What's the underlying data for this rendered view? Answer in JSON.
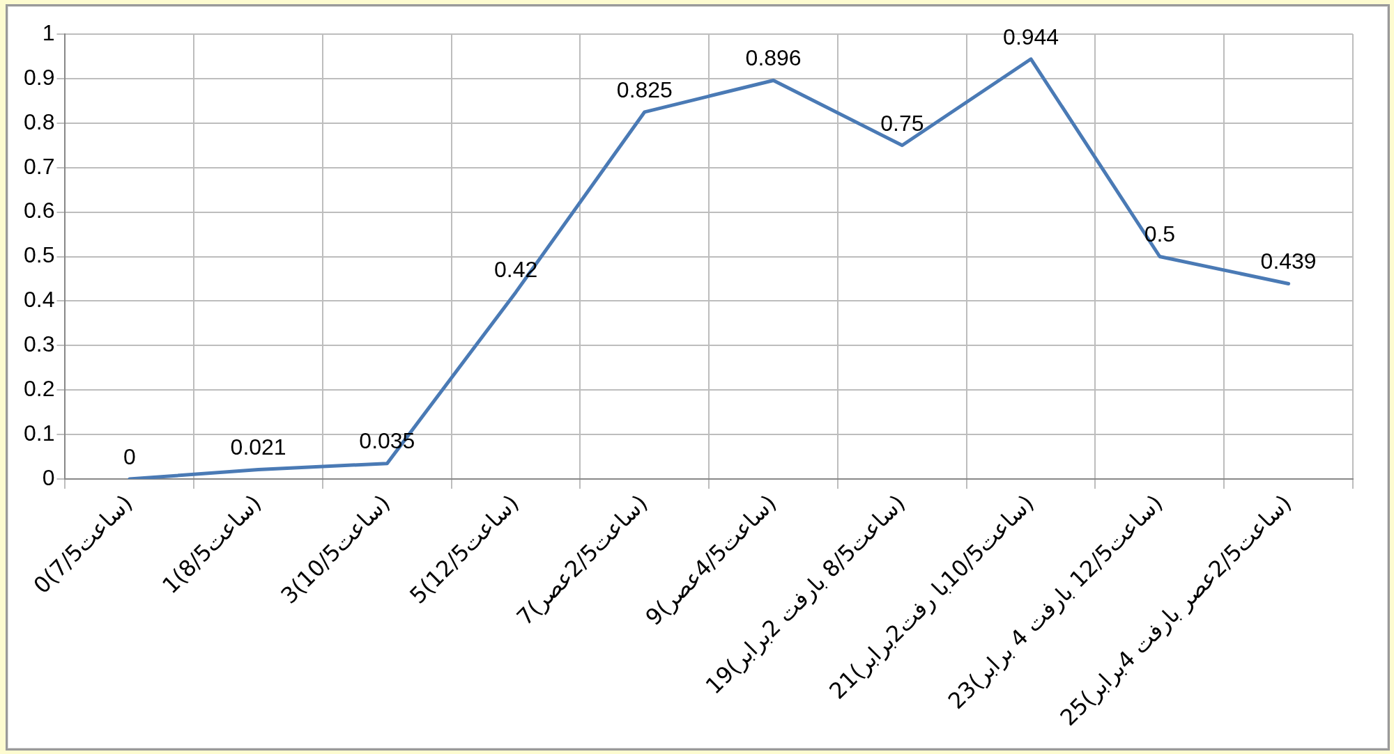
{
  "chart_data": {
    "type": "line",
    "categories": [
      "0(ساعت7/5)",
      "1(ساعت8/5)",
      "3(ساعت10/5)",
      "5(ساعت12/5)",
      "7(ساعت2/5عصر)",
      "9(ساعت4/5عصر)",
      "19(ساعت8/5 بارفت 2برابر)",
      "21(ساعت10/5با رفت2برابر)",
      "23(ساعت12/5 بارفت 4 برابر)",
      "25(ساعت2/5عصر بارفت 4برابر)"
    ],
    "series": [
      {
        "color": "#4a7ab5",
        "values": [
          0,
          0.021,
          0.035,
          0.42,
          0.825,
          0.896,
          0.75,
          0.944,
          0.5,
          0.439
        ]
      }
    ],
    "ylim": [
      0,
      1
    ],
    "yticks": [
      0,
      0.1,
      0.2,
      0.3,
      0.4,
      0.5,
      0.6,
      0.7,
      0.8,
      0.9,
      1
    ],
    "grid": true,
    "data_labels": true,
    "marker": "none",
    "line_style": "solid",
    "legend": false
  }
}
